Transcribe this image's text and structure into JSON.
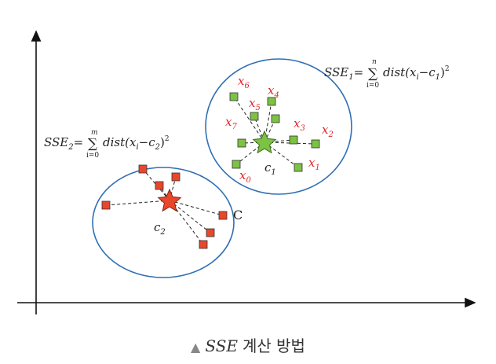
{
  "formula1": {
    "lhs": "SSE",
    "lhs_sub": "1",
    "eq": "=",
    "sigma": "∑",
    "upper": "n",
    "lower": "i=0",
    "body": "dist(x",
    "body_sub": "i",
    "minus": "−c",
    "minus_sub": "1",
    "close": ")",
    "power": "2"
  },
  "formula2": {
    "lhs": "SSE",
    "lhs_sub": "2",
    "eq": "=",
    "sigma": "∑",
    "upper": "m",
    "lower": "i=0",
    "body": "dist(x",
    "body_sub": "i",
    "minus": "−c",
    "minus_sub": "2",
    "close": ")",
    "power": "2"
  },
  "cluster1": {
    "centroid": "c",
    "centroid_sub": "1",
    "points": [
      {
        "base": "x",
        "sub": "6"
      },
      {
        "base": "x",
        "sub": "4"
      },
      {
        "base": "x",
        "sub": "5"
      },
      {
        "base": "x",
        "sub": "7"
      },
      {
        "base": "x",
        "sub": "3"
      },
      {
        "base": "x",
        "sub": "2"
      },
      {
        "base": "x",
        "sub": "1"
      },
      {
        "base": "x",
        "sub": "0"
      }
    ]
  },
  "cluster2": {
    "centroid": "c",
    "centroid_sub": "2",
    "point_label": "C"
  },
  "caption": {
    "marker": "▲",
    "symbol": "SSE",
    "text": "계산 방법"
  },
  "colors": {
    "circle": "#2f6fb5",
    "green_point": "#7cc243",
    "red_point": "#e8472a",
    "label_red": "#e0262c",
    "axis": "#111111"
  }
}
